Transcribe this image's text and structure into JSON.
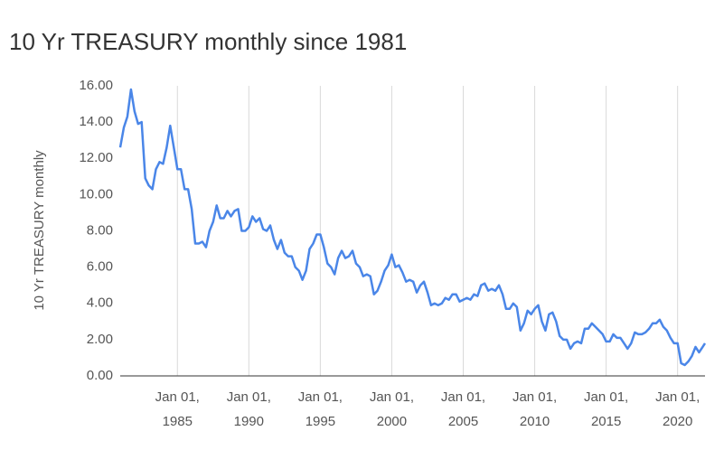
{
  "chart_data": {
    "type": "line",
    "title": "10 Yr TREASURY monthly since 1981",
    "y_label": "10 Yr TREASURY monthly",
    "color": "#4a86e8",
    "grid": "vertical",
    "xlim": [
      "1981-01-01",
      "2021-12-01"
    ],
    "xticks": [
      {
        "value": "1985-01-01",
        "label": "Jan 01, 1985"
      },
      {
        "value": "1990-01-01",
        "label": "Jan 01, 1990"
      },
      {
        "value": "1995-01-01",
        "label": "Jan 01, 1995"
      },
      {
        "value": "2000-01-01",
        "label": "Jan 01, 2000"
      },
      {
        "value": "2005-01-01",
        "label": "Jan 01, 2005"
      },
      {
        "value": "2010-01-01",
        "label": "Jan 01, 2010"
      },
      {
        "value": "2015-01-01",
        "label": "Jan 01, 2015"
      },
      {
        "value": "2020-01-01",
        "label": "Jan 01, 2020"
      }
    ],
    "ylim": [
      0,
      16
    ],
    "yticks": [
      {
        "value": 0,
        "label": "0.00"
      },
      {
        "value": 2,
        "label": "2.00"
      },
      {
        "value": 4,
        "label": "4.00"
      },
      {
        "value": 6,
        "label": "6.00"
      },
      {
        "value": 8,
        "label": "8.00"
      },
      {
        "value": 10,
        "label": "10.00"
      },
      {
        "value": 12,
        "label": "12.00"
      },
      {
        "value": 14,
        "label": "14.00"
      },
      {
        "value": 16,
        "label": "16.00"
      }
    ],
    "x": [
      "1981-01-01",
      "1981-04-01",
      "1981-07-01",
      "1981-10-01",
      "1982-01-01",
      "1982-04-01",
      "1982-07-01",
      "1982-10-01",
      "1983-01-01",
      "1983-04-01",
      "1983-07-01",
      "1983-10-01",
      "1984-01-01",
      "1984-04-01",
      "1984-07-01",
      "1984-10-01",
      "1985-01-01",
      "1985-04-01",
      "1985-07-01",
      "1985-10-01",
      "1986-01-01",
      "1986-04-01",
      "1986-07-01",
      "1986-10-01",
      "1987-01-01",
      "1987-04-01",
      "1987-07-01",
      "1987-10-01",
      "1988-01-01",
      "1988-04-01",
      "1988-07-01",
      "1988-10-01",
      "1989-01-01",
      "1989-04-01",
      "1989-07-01",
      "1989-10-01",
      "1990-01-01",
      "1990-04-01",
      "1990-07-01",
      "1990-10-01",
      "1991-01-01",
      "1991-04-01",
      "1991-07-01",
      "1991-10-01",
      "1992-01-01",
      "1992-04-01",
      "1992-07-01",
      "1992-10-01",
      "1993-01-01",
      "1993-04-01",
      "1993-07-01",
      "1993-10-01",
      "1994-01-01",
      "1994-04-01",
      "1994-07-01",
      "1994-10-01",
      "1995-01-01",
      "1995-04-01",
      "1995-07-01",
      "1995-10-01",
      "1996-01-01",
      "1996-04-01",
      "1996-07-01",
      "1996-10-01",
      "1997-01-01",
      "1997-04-01",
      "1997-07-01",
      "1997-10-01",
      "1998-01-01",
      "1998-04-01",
      "1998-07-01",
      "1998-10-01",
      "1999-01-01",
      "1999-04-01",
      "1999-07-01",
      "1999-10-01",
      "2000-01-01",
      "2000-04-01",
      "2000-07-01",
      "2000-10-01",
      "2001-01-01",
      "2001-04-01",
      "2001-07-01",
      "2001-10-01",
      "2002-01-01",
      "2002-04-01",
      "2002-07-01",
      "2002-10-01",
      "2003-01-01",
      "2003-04-01",
      "2003-07-01",
      "2003-10-01",
      "2004-01-01",
      "2004-04-01",
      "2004-07-01",
      "2004-10-01",
      "2005-01-01",
      "2005-04-01",
      "2005-07-01",
      "2005-10-01",
      "2006-01-01",
      "2006-04-01",
      "2006-07-01",
      "2006-10-01",
      "2007-01-01",
      "2007-04-01",
      "2007-07-01",
      "2007-10-01",
      "2008-01-01",
      "2008-04-01",
      "2008-07-01",
      "2008-10-01",
      "2009-01-01",
      "2009-04-01",
      "2009-07-01",
      "2009-10-01",
      "2010-01-01",
      "2010-04-01",
      "2010-07-01",
      "2010-10-01",
      "2011-01-01",
      "2011-04-01",
      "2011-07-01",
      "2011-10-01",
      "2012-01-01",
      "2012-04-01",
      "2012-07-01",
      "2012-10-01",
      "2013-01-01",
      "2013-04-01",
      "2013-07-01",
      "2013-10-01",
      "2014-01-01",
      "2014-04-01",
      "2014-07-01",
      "2014-10-01",
      "2015-01-01",
      "2015-04-01",
      "2015-07-01",
      "2015-10-01",
      "2016-01-01",
      "2016-04-01",
      "2016-07-01",
      "2016-10-01",
      "2017-01-01",
      "2017-04-01",
      "2017-07-01",
      "2017-10-01",
      "2018-01-01",
      "2018-04-01",
      "2018-07-01",
      "2018-10-01",
      "2019-01-01",
      "2019-04-01",
      "2019-07-01",
      "2019-10-01",
      "2020-01-01",
      "2020-04-01",
      "2020-07-01",
      "2020-10-01",
      "2021-01-01",
      "2021-04-01",
      "2021-07-01",
      "2021-10-01",
      "2021-12-01"
    ],
    "values": [
      12.6,
      13.7,
      14.3,
      15.8,
      14.6,
      13.9,
      14.0,
      10.9,
      10.5,
      10.3,
      11.4,
      11.8,
      11.7,
      12.6,
      13.8,
      12.6,
      11.4,
      11.4,
      10.3,
      10.3,
      9.2,
      7.3,
      7.3,
      7.4,
      7.1,
      8.0,
      8.5,
      9.4,
      8.7,
      8.7,
      9.1,
      8.8,
      9.1,
      9.2,
      8.0,
      8.0,
      8.2,
      8.8,
      8.5,
      8.7,
      8.1,
      8.0,
      8.3,
      7.5,
      7.0,
      7.5,
      6.8,
      6.6,
      6.6,
      6.0,
      5.8,
      5.3,
      5.8,
      7.0,
      7.3,
      7.8,
      7.8,
      7.1,
      6.2,
      6.0,
      5.6,
      6.5,
      6.9,
      6.5,
      6.6,
      6.9,
      6.2,
      6.0,
      5.5,
      5.6,
      5.5,
      4.5,
      4.7,
      5.2,
      5.8,
      6.1,
      6.7,
      6.0,
      6.1,
      5.7,
      5.2,
      5.3,
      5.2,
      4.6,
      5.0,
      5.2,
      4.6,
      3.9,
      4.0,
      3.9,
      4.0,
      4.3,
      4.2,
      4.5,
      4.5,
      4.1,
      4.2,
      4.3,
      4.2,
      4.5,
      4.4,
      5.0,
      5.1,
      4.7,
      4.8,
      4.7,
      5.0,
      4.5,
      3.7,
      3.7,
      4.0,
      3.8,
      2.5,
      2.9,
      3.6,
      3.4,
      3.7,
      3.9,
      3.0,
      2.5,
      3.4,
      3.5,
      3.0,
      2.2,
      2.0,
      2.0,
      1.5,
      1.8,
      1.9,
      1.8,
      2.6,
      2.6,
      2.9,
      2.7,
      2.5,
      2.3,
      1.9,
      1.9,
      2.3,
      2.1,
      2.1,
      1.8,
      1.5,
      1.8,
      2.4,
      2.3,
      2.3,
      2.4,
      2.6,
      2.9,
      2.9,
      3.1,
      2.7,
      2.5,
      2.1,
      1.8,
      1.8,
      0.7,
      0.6,
      0.8,
      1.1,
      1.6,
      1.3,
      1.6,
      1.8
    ]
  }
}
